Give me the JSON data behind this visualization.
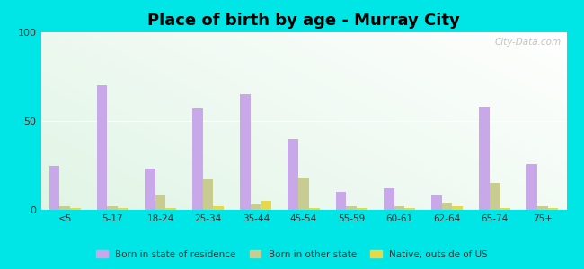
{
  "title": "Place of birth by age - Murray City",
  "background_color": "#00e5e5",
  "categories": [
    "<5",
    "5-17",
    "18-24",
    "25-34",
    "35-44",
    "45-54",
    "55-59",
    "60-61",
    "62-64",
    "65-74",
    "75+"
  ],
  "born_in_state": [
    25,
    70,
    23,
    57,
    65,
    40,
    10,
    12,
    8,
    58,
    26
  ],
  "born_other_state": [
    2,
    2,
    8,
    17,
    3,
    18,
    2,
    2,
    4,
    15,
    2
  ],
  "native_outside_us": [
    1,
    1,
    1,
    2,
    5,
    1,
    1,
    1,
    2,
    1,
    1
  ],
  "color_state": "#c8a8e8",
  "color_other": "#c8cc90",
  "color_native": "#e8d848",
  "ylim": [
    0,
    100
  ],
  "yticks": [
    0,
    50,
    100
  ],
  "bar_width": 0.22,
  "title_fontsize": 13,
  "legend_labels": [
    "Born in state of residence",
    "Born in other state",
    "Native, outside of US"
  ],
  "watermark": "City-Data.com"
}
